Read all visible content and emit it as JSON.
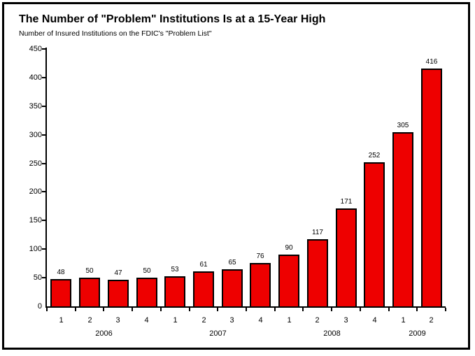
{
  "chart_data": {
    "type": "bar",
    "title": "The Number of \"Problem\" Institutions Is at a 15-Year High",
    "subtitle": "Number of Insured Institutions on the FDIC's \"Problem List\"",
    "quarters": [
      "1",
      "2",
      "3",
      "4",
      "1",
      "2",
      "3",
      "4",
      "1",
      "2",
      "3",
      "4",
      "1",
      "2"
    ],
    "year_groups": [
      {
        "label": "2006",
        "count": 4
      },
      {
        "label": "2007",
        "count": 4
      },
      {
        "label": "2008",
        "count": 4
      },
      {
        "label": "2009",
        "count": 2
      }
    ],
    "values": [
      48,
      50,
      47,
      50,
      53,
      61,
      65,
      76,
      90,
      117,
      171,
      252,
      305,
      416
    ],
    "ylim": [
      0,
      450
    ],
    "ytick_step": 50,
    "ytick_labels": [
      "0",
      "50",
      "100",
      "150",
      "200",
      "250",
      "300",
      "350",
      "400",
      "450"
    ],
    "grid": false,
    "legend": "none",
    "data_labels_shown": true,
    "bar_color": "#ee0000",
    "bar_border_color": "#000000",
    "text_color": "#000000",
    "frame_color": "#000000"
  }
}
